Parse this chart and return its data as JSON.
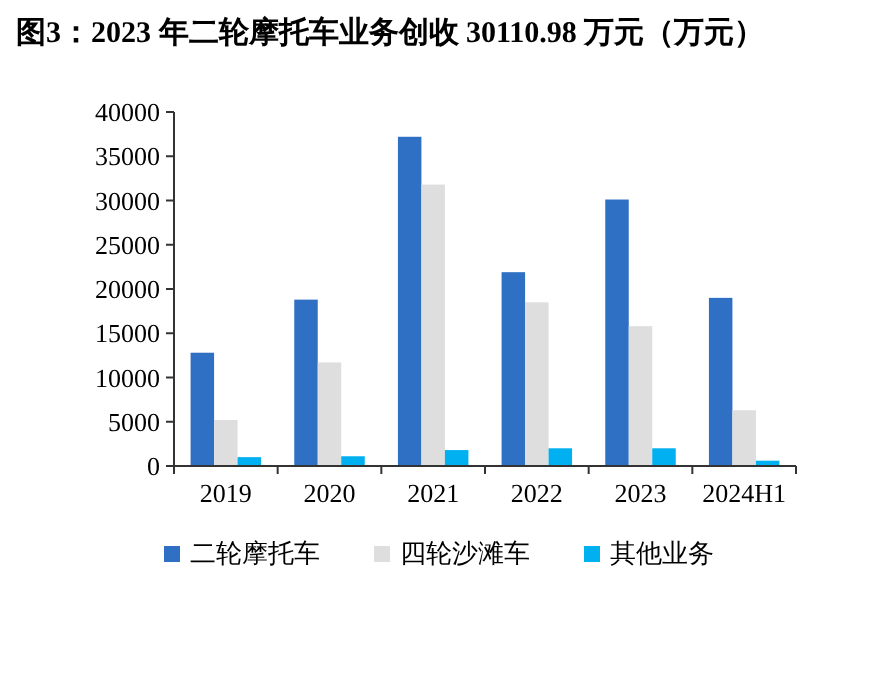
{
  "chart_data": {
    "type": "bar",
    "title": "图3：2023 年二轮摩托车业务创收 30110.98 万元（万元）",
    "categories": [
      "2019",
      "2020",
      "2021",
      "2022",
      "2023",
      "2024H1"
    ],
    "series": [
      {
        "name": "二轮摩托车",
        "color": "#3070c4",
        "values": [
          12800,
          18800,
          37200,
          21900,
          30111,
          19000
        ]
      },
      {
        "name": "四轮沙滩车",
        "color": "#dedede",
        "values": [
          5200,
          11700,
          31800,
          18500,
          15800,
          6300
        ]
      },
      {
        "name": "其他业务",
        "color": "#00b0f0",
        "values": [
          1000,
          1100,
          1800,
          2000,
          2000,
          600
        ]
      }
    ],
    "ylim": [
      0,
      40000
    ],
    "yticks": [
      0,
      5000,
      10000,
      15000,
      20000,
      25000,
      30000,
      35000,
      40000
    ],
    "grid": false,
    "legend": "bottom"
  }
}
